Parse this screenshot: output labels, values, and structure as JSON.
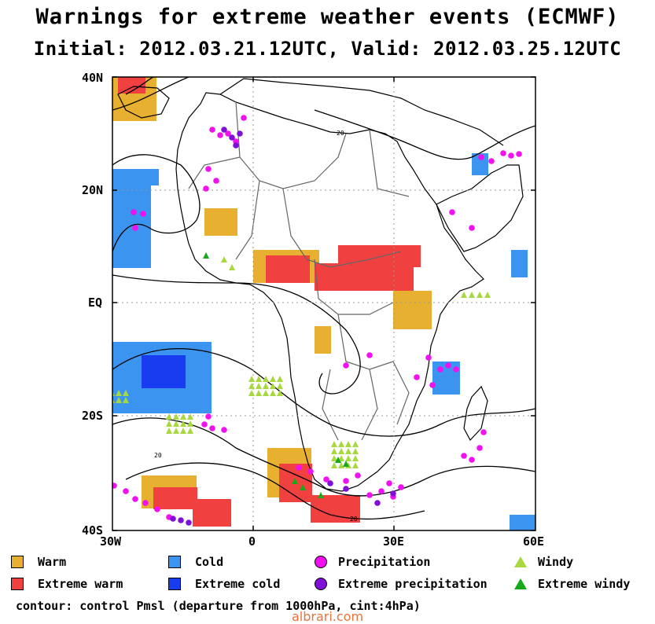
{
  "title": {
    "line1": "Warnings for extreme weather events (ECMWF)",
    "line2": "Initial: 2012.03.21.12UTC, Valid: 2012.03.25.12UTC"
  },
  "axes": {
    "lat_labels": [
      "40N",
      "20N",
      "EQ",
      "20S",
      "40S"
    ],
    "lon_labels": [
      "30W",
      "0",
      "30E",
      "60E"
    ]
  },
  "legend": {
    "warm": "Warm",
    "extreme_warm": "Extreme warm",
    "cold": "Cold",
    "extreme_cold": "Extreme cold",
    "precipitation": "Precipitation",
    "extreme_precipitation": "Extreme precipitation",
    "windy": "Windy",
    "extreme_windy": "Extreme windy"
  },
  "contour_note": "contour: control Pmsl (departure from 1000hPa, cint:4hPa)",
  "contour_labels": [
    "20",
    "20",
    "20"
  ],
  "watermark": "albrari.com",
  "colors": {
    "warm": "#e8b030",
    "extreme_warm": "#f04040",
    "cold": "#3a94f0",
    "extreme_cold": "#1a3cf0",
    "precipitation": "#f010f0",
    "extreme_precipitation": "#8010d8",
    "windy": "#a8d840",
    "extreme_windy": "#18a818"
  }
}
